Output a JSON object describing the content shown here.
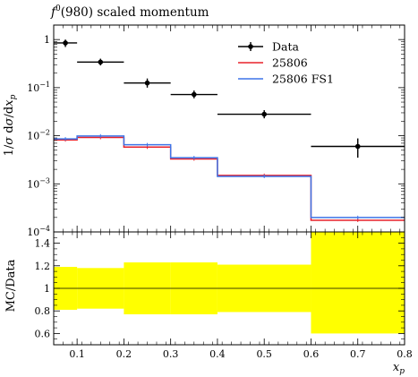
{
  "chart_data": [
    {
      "type": "line",
      "title_prefix": "f",
      "title_superscript": "0",
      "title_suffix": "(980) scaled momentum",
      "ylabel": "1/σ dσ/dx_p",
      "yscale": "log",
      "xlim": [
        0.05,
        0.8
      ],
      "ylim": [
        0.0001,
        2
      ],
      "yticks": [
        {
          "value": 1,
          "base": "1",
          "exp": ""
        },
        {
          "value": 0.1,
          "base": "10",
          "exp": "−1"
        },
        {
          "value": 0.01,
          "base": "10",
          "exp": "−2"
        },
        {
          "value": 0.001,
          "base": "10",
          "exp": "−3"
        },
        {
          "value": 0.0001,
          "base": "10",
          "exp": "−4"
        }
      ],
      "legend_position": "top-right",
      "bin_edges": [
        0.05,
        0.1,
        0.2,
        0.3,
        0.4,
        0.6,
        0.8
      ],
      "series": [
        {
          "name": "Data",
          "kind": "points",
          "color": "#000000",
          "points": [
            {
              "x": 0.075,
              "xlo": 0.05,
              "xhi": 0.1,
              "y": 0.85,
              "ylo": 0.7,
              "yhi": 1.0
            },
            {
              "x": 0.15,
              "xlo": 0.1,
              "xhi": 0.2,
              "y": 0.34,
              "ylo": 0.29,
              "yhi": 0.4
            },
            {
              "x": 0.25,
              "xlo": 0.2,
              "xhi": 0.3,
              "y": 0.125,
              "ylo": 0.1,
              "yhi": 0.155
            },
            {
              "x": 0.35,
              "xlo": 0.3,
              "xhi": 0.4,
              "y": 0.072,
              "ylo": 0.06,
              "yhi": 0.087
            },
            {
              "x": 0.5,
              "xlo": 0.4,
              "xhi": 0.6,
              "y": 0.028,
              "ylo": 0.023,
              "yhi": 0.034
            },
            {
              "x": 0.7,
              "xlo": 0.6,
              "xhi": 0.8,
              "y": 0.006,
              "ylo": 0.0035,
              "yhi": 0.0088
            }
          ]
        },
        {
          "name": "25806",
          "kind": "histogram",
          "color": "#e8202a",
          "values": [
            0.0082,
            0.0092,
            0.0058,
            0.0033,
            0.0015,
            0.000175
          ]
        },
        {
          "name": "25806 FS1",
          "kind": "histogram",
          "color": "#3d74e8",
          "values": [
            0.0086,
            0.0099,
            0.0065,
            0.0035,
            0.00143,
            0.0002
          ]
        }
      ]
    },
    {
      "type": "area",
      "ylabel": "MC/Data",
      "xlabel": "x_p",
      "xlim": [
        0.05,
        0.8
      ],
      "ylim": [
        0.5,
        1.5
      ],
      "yticks": [
        "0.6",
        "0.8",
        "1",
        "1.2",
        "1.4"
      ],
      "xticks": [
        "0.1",
        "0.2",
        "0.3",
        "0.4",
        "0.5",
        "0.6",
        "0.7",
        "0.8"
      ],
      "band_color": "#ffff00",
      "reference_line": 1,
      "bin_edges": [
        0.05,
        0.1,
        0.2,
        0.3,
        0.4,
        0.6,
        0.8
      ],
      "band_low": [
        0.81,
        0.82,
        0.77,
        0.77,
        0.79,
        0.6
      ],
      "band_high": [
        1.19,
        1.18,
        1.23,
        1.23,
        1.21,
        1.5
      ]
    }
  ]
}
